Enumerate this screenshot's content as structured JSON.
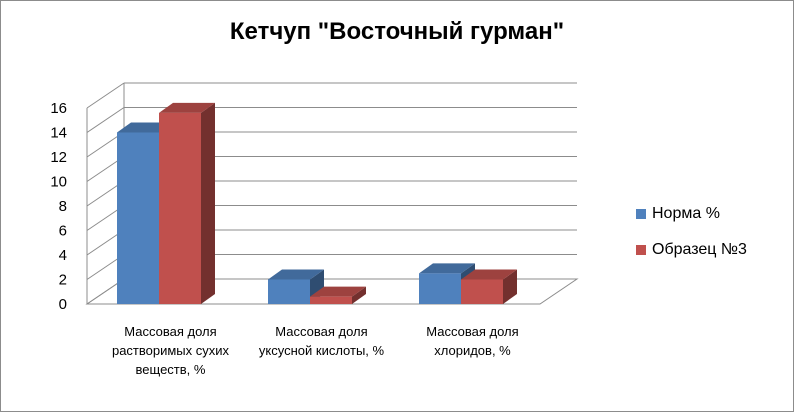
{
  "chart_data": {
    "type": "bar",
    "title": "Кетчуп \"Восточный гурман\"",
    "categories": [
      [
        "Массовая доля",
        "растворимых сухих",
        "веществ, %"
      ],
      [
        "Массовая доля",
        "уксусной кислоты, %"
      ],
      [
        "Массовая доля",
        "хлоридов, %"
      ]
    ],
    "series": [
      {
        "name": "Норма %",
        "color": "#4f81bd",
        "values": [
          14,
          2,
          2.5
        ]
      },
      {
        "name": "Образец №3",
        "color": "#c0504d",
        "values": [
          15.6,
          0.6,
          2
        ]
      }
    ],
    "ylim": [
      0,
      16
    ],
    "yticks": [
      0,
      2,
      4,
      6,
      8,
      10,
      12,
      14,
      16
    ],
    "grid": true,
    "legend": "right"
  }
}
